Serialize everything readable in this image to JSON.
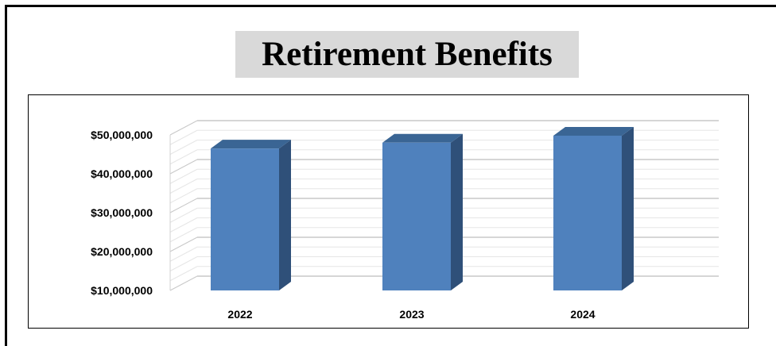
{
  "title": "Retirement Benefits",
  "chart_data": {
    "type": "bar",
    "title": "Retirement Benefits",
    "categories": [
      "2022",
      "2023",
      "2024"
    ],
    "series": [
      {
        "values": [
          46500000,
          48000000,
          49800000
        ]
      }
    ],
    "ylim": [
      10000000,
      50000000
    ],
    "yticks": [
      "$10,000,000",
      "$20,000,000",
      "$30,000,000",
      "$40,000,000",
      "$50,000,000"
    ],
    "ytick_values": [
      10000000,
      20000000,
      30000000,
      40000000,
      50000000
    ],
    "grid": true,
    "style": "3d-column",
    "colors": {
      "front": "#4f81bd",
      "side": "#2f5079",
      "top": "#3a6594"
    }
  }
}
